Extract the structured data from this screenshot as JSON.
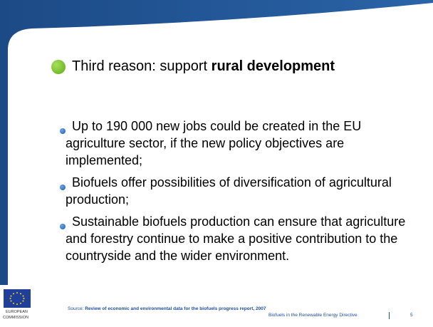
{
  "heading": {
    "prefix": "Third reason: support ",
    "bold": "rural development"
  },
  "bullets": [
    "Up to 190 000 new jobs could be created in the EU agriculture sector, if the new policy objectives are implemented;",
    "Biofuels offer possibilities of diversification of agricultural production;",
    "Sustainable biofuels production can ensure that agriculture and forestry continue to make a positive contribution to the countryside and the wider environment."
  ],
  "footer": {
    "logo_line1": "EUROPEAN",
    "logo_line2": "COMMISSION",
    "source_label": "Source: ",
    "source_title": "Review of economic and environmental data for the biofuels progress report, 2007",
    "deck_title": "Biofuels in the Renewable Energy Directive",
    "page": "5"
  }
}
